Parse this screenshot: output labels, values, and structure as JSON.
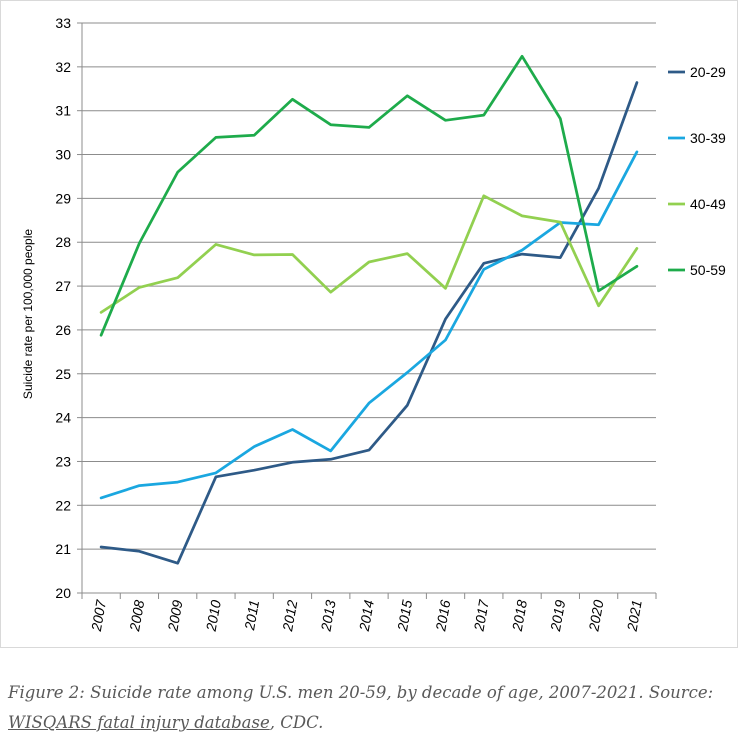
{
  "chart_data": {
    "type": "line",
    "title": "",
    "xlabel": "",
    "ylabel": "Suicide rate per 100,000 people",
    "ylim": [
      20,
      33
    ],
    "yticks": [
      20,
      21,
      22,
      23,
      24,
      25,
      26,
      27,
      28,
      29,
      30,
      31,
      32,
      33
    ],
    "x": [
      "2007",
      "2008",
      "2009",
      "2010",
      "2011",
      "2012",
      "2013",
      "2014",
      "2015",
      "2016",
      "2017",
      "2018",
      "2019",
      "2020",
      "2021"
    ],
    "grid": "horizontal",
    "legend_position": "right",
    "series": [
      {
        "name": "20-29",
        "color": "#2e5a87",
        "values": [
          21.05,
          20.95,
          20.68,
          22.65,
          22.8,
          22.98,
          23.05,
          23.26,
          24.28,
          26.25,
          27.52,
          27.73,
          27.65,
          29.23,
          31.64
        ]
      },
      {
        "name": "30-39",
        "color": "#1aa7e0",
        "values": [
          22.17,
          22.45,
          22.53,
          22.74,
          23.34,
          23.73,
          23.24,
          24.33,
          25.03,
          25.77,
          27.38,
          27.82,
          28.45,
          28.4,
          30.06
        ]
      },
      {
        "name": "40-49",
        "color": "#92d050",
        "values": [
          26.4,
          26.97,
          27.19,
          27.95,
          27.71,
          27.72,
          26.86,
          27.55,
          27.74,
          26.95,
          29.06,
          28.6,
          28.46,
          26.55,
          27.86
        ]
      },
      {
        "name": "50-59",
        "color": "#1eab4b",
        "values": [
          25.88,
          27.98,
          29.6,
          30.39,
          30.44,
          31.26,
          30.68,
          30.62,
          31.34,
          30.78,
          30.9,
          32.24,
          30.82,
          26.89,
          27.45
        ]
      }
    ]
  },
  "caption": {
    "before_link": "Figure 2: Suicide rate among U.S. men 20-59, by decade of age, 2007-2021. Source: ",
    "link_text": "WISQARS fatal injury database",
    "after_link": ", CDC."
  }
}
